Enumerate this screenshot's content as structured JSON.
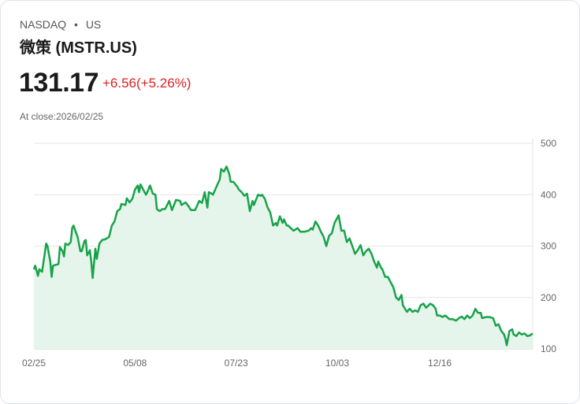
{
  "header": {
    "exchange": "NASDAQ",
    "dot": "•",
    "region": "US",
    "title": "微策 (MSTR.US)",
    "price": "131.17",
    "change": "+6.56(+5.26%)",
    "close_label": "At close:2026/02/25"
  },
  "colors": {
    "line": "#17a34a",
    "fill": "#e6f5ec",
    "change": "#e02020"
  },
  "chart_data": {
    "type": "area",
    "title": "微策 (MSTR.US)",
    "xlabel": "",
    "ylabel": "",
    "xlim": [
      0,
      365
    ],
    "ylim": [
      100,
      500
    ],
    "x_unit": "days since 02/25",
    "x_ticks": [
      {
        "x": 0,
        "label": "02/25"
      },
      {
        "x": 74,
        "label": "05/08"
      },
      {
        "x": 148,
        "label": "07/23"
      },
      {
        "x": 222,
        "label": "10/03"
      },
      {
        "x": 297,
        "label": "12/16"
      }
    ],
    "y_ticks": [
      {
        "y": 500,
        "label": "500"
      },
      {
        "y": 400,
        "label": "400"
      },
      {
        "y": 300,
        "label": "300"
      },
      {
        "y": 200,
        "label": "200"
      },
      {
        "y": 100,
        "label": "100"
      }
    ],
    "grid": true,
    "points": [
      [
        0,
        255
      ],
      [
        1,
        262
      ],
      [
        3,
        242
      ],
      [
        4,
        255
      ],
      [
        6,
        250
      ],
      [
        9,
        305
      ],
      [
        10,
        300
      ],
      [
        12,
        270
      ],
      [
        13,
        240
      ],
      [
        14,
        262
      ],
      [
        18,
        265
      ],
      [
        19,
        298
      ],
      [
        21,
        290
      ],
      [
        22,
        280
      ],
      [
        23,
        305
      ],
      [
        25,
        302
      ],
      [
        27,
        308
      ],
      [
        28,
        335
      ],
      [
        29,
        340
      ],
      [
        31,
        325
      ],
      [
        32,
        318
      ],
      [
        34,
        290
      ],
      [
        35,
        290
      ],
      [
        37,
        310
      ],
      [
        38,
        312
      ],
      [
        39,
        282
      ],
      [
        41,
        292
      ],
      [
        42,
        270
      ],
      [
        43,
        238
      ],
      [
        45,
        295
      ],
      [
        46,
        275
      ],
      [
        48,
        305
      ],
      [
        50,
        312
      ],
      [
        52,
        313
      ],
      [
        55,
        318
      ],
      [
        57,
        340
      ],
      [
        59,
        348
      ],
      [
        61,
        368
      ],
      [
        63,
        372
      ],
      [
        64,
        382
      ],
      [
        67,
        380
      ],
      [
        68,
        393
      ],
      [
        70,
        385
      ],
      [
        72,
        392
      ],
      [
        74,
        410
      ],
      [
        76,
        418
      ],
      [
        77,
        405
      ],
      [
        78,
        420
      ],
      [
        80,
        410
      ],
      [
        82,
        400
      ],
      [
        83,
        405
      ],
      [
        85,
        418
      ],
      [
        87,
        402
      ],
      [
        89,
        400
      ],
      [
        90,
        372
      ],
      [
        92,
        368
      ],
      [
        94,
        372
      ],
      [
        96,
        372
      ],
      [
        99,
        388
      ],
      [
        101,
        370
      ],
      [
        104,
        390
      ],
      [
        107,
        388
      ],
      [
        108,
        380
      ],
      [
        111,
        385
      ],
      [
        113,
        378
      ],
      [
        115,
        370
      ],
      [
        118,
        370
      ],
      [
        121,
        388
      ],
      [
        123,
        384
      ],
      [
        125,
        405
      ],
      [
        127,
        375
      ],
      [
        128,
        405
      ],
      [
        130,
        402
      ],
      [
        131,
        400
      ],
      [
        134,
        418
      ],
      [
        136,
        430
      ],
      [
        137,
        450
      ],
      [
        139,
        445
      ],
      [
        141,
        455
      ],
      [
        143,
        440
      ],
      [
        144,
        425
      ],
      [
        146,
        425
      ],
      [
        149,
        415
      ],
      [
        150,
        410
      ],
      [
        152,
        405
      ],
      [
        154,
        398
      ],
      [
        156,
        402
      ],
      [
        158,
        368
      ],
      [
        160,
        388
      ],
      [
        161,
        380
      ],
      [
        164,
        400
      ],
      [
        166,
        398
      ],
      [
        167,
        400
      ],
      [
        169,
        392
      ],
      [
        171,
        375
      ],
      [
        173,
        365
      ],
      [
        175,
        340
      ],
      [
        177,
        345
      ],
      [
        178,
        340
      ],
      [
        180,
        358
      ],
      [
        182,
        345
      ],
      [
        183,
        352
      ],
      [
        185,
        340
      ],
      [
        186,
        340
      ],
      [
        188,
        335
      ],
      [
        190,
        330
      ],
      [
        193,
        335
      ],
      [
        195,
        328
      ],
      [
        198,
        328
      ],
      [
        201,
        330
      ],
      [
        203,
        335
      ],
      [
        204,
        332
      ],
      [
        206,
        348
      ],
      [
        208,
        340
      ],
      [
        210,
        328
      ],
      [
        212,
        318
      ],
      [
        214,
        300
      ],
      [
        216,
        320
      ],
      [
        218,
        325
      ],
      [
        220,
        345
      ],
      [
        222,
        355
      ],
      [
        223,
        360
      ],
      [
        225,
        330
      ],
      [
        227,
        330
      ],
      [
        229,
        308
      ],
      [
        231,
        315
      ],
      [
        233,
        300
      ],
      [
        235,
        285
      ],
      [
        237,
        292
      ],
      [
        239,
        302
      ],
      [
        241,
        282
      ],
      [
        243,
        290
      ],
      [
        245,
        295
      ],
      [
        247,
        285
      ],
      [
        249,
        270
      ],
      [
        251,
        258
      ],
      [
        252,
        270
      ],
      [
        254,
        258
      ],
      [
        255,
        255
      ],
      [
        257,
        240
      ],
      [
        259,
        240
      ],
      [
        261,
        230
      ],
      [
        263,
        220
      ],
      [
        265,
        200
      ],
      [
        267,
        195
      ],
      [
        269,
        205
      ],
      [
        270,
        185
      ],
      [
        273,
        172
      ],
      [
        275,
        178
      ],
      [
        277,
        172
      ],
      [
        279,
        175
      ],
      [
        281,
        172
      ],
      [
        283,
        185
      ],
      [
        285,
        188
      ],
      [
        287,
        180
      ],
      [
        290,
        188
      ],
      [
        292,
        185
      ],
      [
        294,
        178
      ],
      [
        295,
        165
      ],
      [
        297,
        165
      ],
      [
        299,
        162
      ],
      [
        301,
        165
      ],
      [
        304,
        158
      ],
      [
        306,
        158
      ],
      [
        309,
        155
      ],
      [
        311,
        160
      ],
      [
        313,
        163
      ],
      [
        315,
        158
      ],
      [
        317,
        165
      ],
      [
        319,
        160
      ],
      [
        321,
        165
      ],
      [
        323,
        178
      ],
      [
        325,
        170
      ],
      [
        327,
        170
      ],
      [
        328,
        160
      ],
      [
        331,
        162
      ],
      [
        333,
        162
      ],
      [
        336,
        160
      ],
      [
        338,
        145
      ],
      [
        340,
        148
      ],
      [
        342,
        135
      ],
      [
        344,
        128
      ],
      [
        345,
        120
      ],
      [
        346,
        107
      ],
      [
        348,
        135
      ],
      [
        350,
        138
      ],
      [
        351,
        128
      ],
      [
        353,
        125
      ],
      [
        355,
        132
      ],
      [
        357,
        128
      ],
      [
        359,
        130
      ],
      [
        361,
        125
      ],
      [
        363,
        126
      ],
      [
        365,
        130
      ]
    ]
  }
}
